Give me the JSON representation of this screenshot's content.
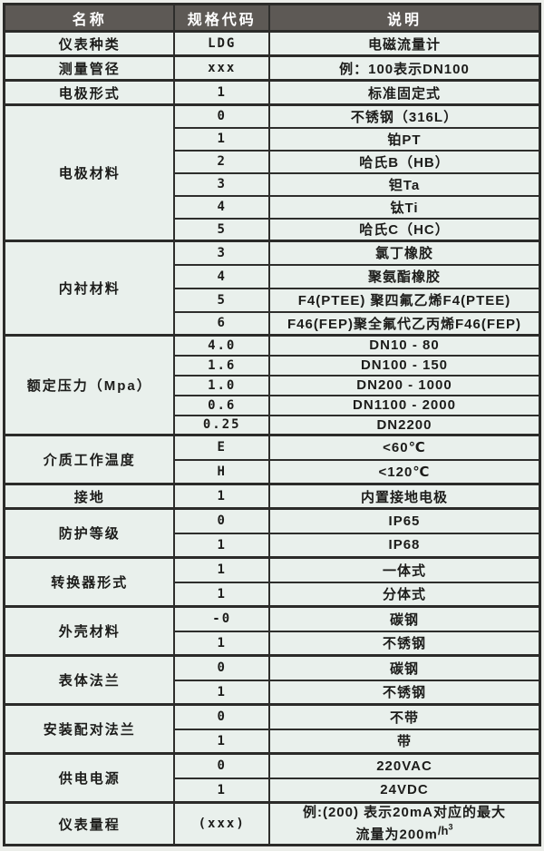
{
  "table": {
    "headers": [
      "名称",
      "规格代码",
      "说明"
    ],
    "colors": {
      "header_bg": "#5d5955",
      "header_text": "#ffffff",
      "cell_bg": "#e9f0ec",
      "border": "#2b2b29"
    },
    "sections": [
      {
        "name": "仪表种类",
        "rows": [
          {
            "code": "LDG",
            "desc": "电磁流量计"
          }
        ]
      },
      {
        "name": "测量管径",
        "rows": [
          {
            "code": "xxx",
            "desc": "例：100表示DN100"
          }
        ]
      },
      {
        "name": "电极形式",
        "rows": [
          {
            "code": "1",
            "desc": "标准固定式"
          }
        ]
      },
      {
        "name": "电极材料",
        "rows": [
          {
            "code": "0",
            "desc": "不锈钢（316L）"
          },
          {
            "code": "1",
            "desc": "铂PT"
          },
          {
            "code": "2",
            "desc": "哈氏B（HB）"
          },
          {
            "code": "3",
            "desc": "钽Ta"
          },
          {
            "code": "4",
            "desc": "钛Ti"
          },
          {
            "code": "5",
            "desc": "哈氏C（HC）"
          }
        ]
      },
      {
        "name": "内衬材料",
        "rows": [
          {
            "code": "3",
            "desc": "氯丁橡胶"
          },
          {
            "code": "4",
            "desc": "聚氨酯橡胶"
          },
          {
            "code": "5",
            "desc": "F4(PTEE) 聚四氟乙烯F4(PTEE)"
          },
          {
            "code": "6",
            "desc": "F46(FEP)聚全氟代乙丙烯F46(FEP)"
          }
        ]
      },
      {
        "name": "额定压力（Mpa）",
        "rows": [
          {
            "code": "4.0",
            "desc": "DN10 - 80"
          },
          {
            "code": "1.6",
            "desc": "DN100 - 150"
          },
          {
            "code": "1.0",
            "desc": "DN200 - 1000"
          },
          {
            "code": "0.6",
            "desc": "DN1100 - 2000"
          },
          {
            "code": "0.25",
            "desc": "DN2200"
          }
        ]
      },
      {
        "name": "介质工作温度",
        "rows": [
          {
            "code": "E",
            "desc": "<60℃"
          },
          {
            "code": "H",
            "desc": "<120℃"
          }
        ]
      },
      {
        "name": "接地",
        "rows": [
          {
            "code": "1",
            "desc": "内置接地电极"
          }
        ]
      },
      {
        "name": "防护等级",
        "rows": [
          {
            "code": "0",
            "desc": "IP65"
          },
          {
            "code": "1",
            "desc": "IP68"
          }
        ]
      },
      {
        "name": "转换器形式",
        "rows": [
          {
            "code": "1",
            "desc": "一体式"
          },
          {
            "code": "1",
            "desc": "分体式"
          }
        ]
      },
      {
        "name": "外壳材料",
        "rows": [
          {
            "code": "-0",
            "desc": "碳钢"
          },
          {
            "code": "1",
            "desc": "不锈钢"
          }
        ]
      },
      {
        "name": "表体法兰",
        "rows": [
          {
            "code": "0",
            "desc": "碳钢"
          },
          {
            "code": "1",
            "desc": "不锈钢"
          }
        ]
      },
      {
        "name": "安装配对法兰",
        "rows": [
          {
            "code": "0",
            "desc": "不带"
          },
          {
            "code": "1",
            "desc": "带"
          }
        ]
      },
      {
        "name": "供电电源",
        "rows": [
          {
            "code": "0",
            "desc": "220VAC"
          },
          {
            "code": "1",
            "desc": "24VDC"
          }
        ]
      },
      {
        "name": "仪表量程",
        "rows": [
          {
            "code": "(xxx)",
            "desc_line1": "例:(200) 表示20mA对应的最大",
            "desc_line2": "流量为200m",
            "unit": "/h",
            "unit_sup": "3"
          }
        ]
      }
    ]
  }
}
